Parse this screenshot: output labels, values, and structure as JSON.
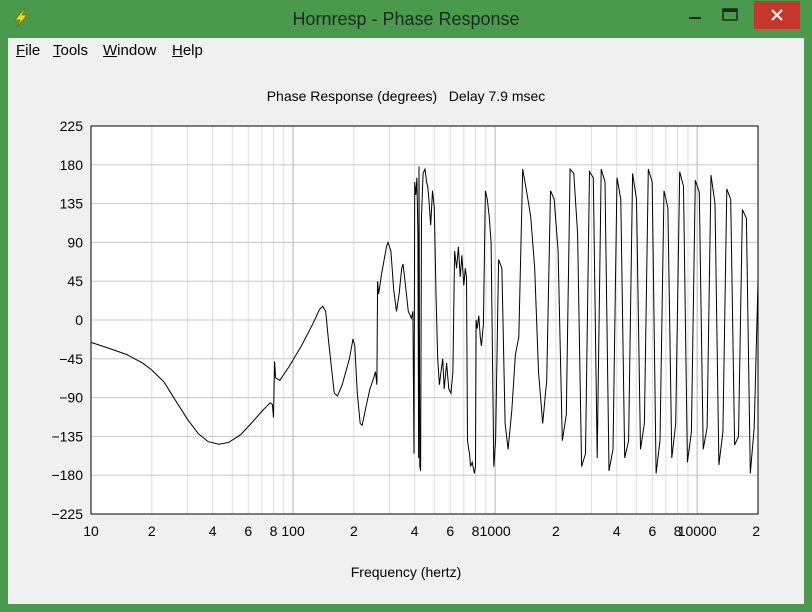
{
  "window": {
    "title": "Hornresp - Phase Response",
    "icon": "lightning-bolt-icon",
    "colors": {
      "frame": "#4a9a4e",
      "close": "#c7362b"
    }
  },
  "menu": {
    "items": [
      {
        "accel": "F",
        "rest": "ile"
      },
      {
        "accel": "T",
        "rest": "ools"
      },
      {
        "accel": "W",
        "rest": "indow"
      },
      {
        "accel": "H",
        "rest": "elp"
      }
    ]
  },
  "chart_data": {
    "type": "line",
    "title": "Phase Response (degrees)   Delay 7.9 msec",
    "xlabel": "Frequency (hertz)",
    "ylabel": "",
    "xscale": "log",
    "xlim": [
      10,
      20000
    ],
    "ylim": [
      -225,
      225
    ],
    "y_ticks": [
      "225",
      "180",
      "135",
      "90",
      "45",
      "0",
      "−45",
      "−90",
      "−135",
      "−180",
      "−225"
    ],
    "x_ticks": [
      {
        "value": 10,
        "label": "10"
      },
      {
        "value": 20,
        "label": "2"
      },
      {
        "value": 40,
        "label": "4"
      },
      {
        "value": 60,
        "label": "6"
      },
      {
        "value": 80,
        "label": "8"
      },
      {
        "value": 100,
        "label": "100"
      },
      {
        "value": 200,
        "label": "2"
      },
      {
        "value": 400,
        "label": "4"
      },
      {
        "value": 600,
        "label": "6"
      },
      {
        "value": 800,
        "label": "8"
      },
      {
        "value": 1000,
        "label": "1000"
      },
      {
        "value": 2000,
        "label": "2"
      },
      {
        "value": 4000,
        "label": "4"
      },
      {
        "value": 6000,
        "label": "6"
      },
      {
        "value": 8000,
        "label": "8"
      },
      {
        "value": 10000,
        "label": "10000"
      },
      {
        "value": 20000,
        "label": "2"
      }
    ],
    "grid": true,
    "series": [
      {
        "points": [
          [
            10,
            -26
          ],
          [
            12,
            -32
          ],
          [
            15,
            -40
          ],
          [
            18,
            -50
          ],
          [
            20,
            -58
          ],
          [
            23,
            -72
          ],
          [
            26,
            -92
          ],
          [
            30,
            -115
          ],
          [
            34,
            -132
          ],
          [
            38,
            -141
          ],
          [
            43,
            -144
          ],
          [
            48,
            -142
          ],
          [
            55,
            -133
          ],
          [
            62,
            -120
          ],
          [
            70,
            -106
          ],
          [
            77,
            -96
          ],
          [
            79,
            -98
          ],
          [
            80,
            -113
          ],
          [
            81,
            -48
          ],
          [
            82,
            -67
          ],
          [
            86,
            -70
          ],
          [
            95,
            -55
          ],
          [
            110,
            -30
          ],
          [
            125,
            -5
          ],
          [
            135,
            12
          ],
          [
            140,
            16
          ],
          [
            145,
            10
          ],
          [
            150,
            -25
          ],
          [
            160,
            -85
          ],
          [
            166,
            -88
          ],
          [
            175,
            -75
          ],
          [
            190,
            -45
          ],
          [
            198,
            -22
          ],
          [
            202,
            -30
          ],
          [
            208,
            -85
          ],
          [
            215,
            -120
          ],
          [
            220,
            -122
          ],
          [
            230,
            -100
          ],
          [
            240,
            -80
          ],
          [
            250,
            -68
          ],
          [
            256,
            -60
          ],
          [
            260,
            -75
          ],
          [
            262,
            45
          ],
          [
            265,
            30
          ],
          [
            275,
            55
          ],
          [
            290,
            85
          ],
          [
            295,
            90
          ],
          [
            305,
            80
          ],
          [
            315,
            35
          ],
          [
            325,
            10
          ],
          [
            335,
            30
          ],
          [
            345,
            60
          ],
          [
            350,
            65
          ],
          [
            360,
            40
          ],
          [
            372,
            10
          ],
          [
            385,
            2
          ],
          [
            392,
            10
          ],
          [
            397,
            -155
          ],
          [
            400,
            160
          ],
          [
            405,
            145
          ],
          [
            410,
            165
          ],
          [
            415,
            100
          ],
          [
            418,
            -160
          ],
          [
            420,
            178
          ],
          [
            424,
            -170
          ],
          [
            428,
            -175
          ],
          [
            432,
            120
          ],
          [
            440,
            170
          ],
          [
            450,
            175
          ],
          [
            458,
            160
          ],
          [
            464,
            155
          ],
          [
            470,
            140
          ],
          [
            480,
            110
          ],
          [
            490,
            150
          ],
          [
            500,
            130
          ],
          [
            510,
            30
          ],
          [
            520,
            -45
          ],
          [
            530,
            -75
          ],
          [
            540,
            -60
          ],
          [
            550,
            -45
          ],
          [
            560,
            -80
          ],
          [
            575,
            -50
          ],
          [
            590,
            -80
          ],
          [
            605,
            -85
          ],
          [
            618,
            -60
          ],
          [
            630,
            80
          ],
          [
            645,
            60
          ],
          [
            658,
            85
          ],
          [
            672,
            50
          ],
          [
            685,
            75
          ],
          [
            700,
            40
          ],
          [
            712,
            60
          ],
          [
            722,
            50
          ],
          [
            730,
            -140
          ],
          [
            740,
            -150
          ],
          [
            748,
            -155
          ],
          [
            755,
            -170
          ],
          [
            770,
            -165
          ],
          [
            790,
            -178
          ],
          [
            800,
            -170
          ],
          [
            805,
            0
          ],
          [
            815,
            -10
          ],
          [
            830,
            5
          ],
          [
            845,
            -20
          ],
          [
            855,
            -30
          ],
          [
            875,
            -5
          ],
          [
            895,
            150
          ],
          [
            915,
            140
          ],
          [
            935,
            120
          ],
          [
            955,
            90
          ],
          [
            985,
            -170
          ],
          [
            1005,
            -140
          ],
          [
            1040,
            70
          ],
          [
            1080,
            60
          ],
          [
            1120,
            -120
          ],
          [
            1160,
            -150
          ],
          [
            1210,
            -105
          ],
          [
            1260,
            -40
          ],
          [
            1310,
            -20
          ],
          [
            1370,
            175
          ],
          [
            1430,
            150
          ],
          [
            1500,
            120
          ],
          [
            1570,
            60
          ],
          [
            1640,
            -60
          ],
          [
            1720,
            -120
          ],
          [
            1800,
            -70
          ],
          [
            1880,
            150
          ],
          [
            1960,
            140
          ],
          [
            2050,
            80
          ],
          [
            2150,
            -140
          ],
          [
            2250,
            -110
          ],
          [
            2350,
            175
          ],
          [
            2450,
            170
          ],
          [
            2560,
            100
          ],
          [
            2680,
            -170
          ],
          [
            2800,
            -155
          ],
          [
            2930,
            172
          ],
          [
            3060,
            165
          ],
          [
            3200,
            -160
          ],
          [
            3350,
            175
          ],
          [
            3500,
            160
          ],
          [
            3660,
            -175
          ],
          [
            3830,
            -150
          ],
          [
            4010,
            165
          ],
          [
            4190,
            140
          ],
          [
            4380,
            -160
          ],
          [
            4580,
            -140
          ],
          [
            4790,
            170
          ],
          [
            5010,
            140
          ],
          [
            5240,
            -150
          ],
          [
            5480,
            -120
          ],
          [
            5730,
            175
          ],
          [
            5990,
            160
          ],
          [
            6260,
            -178
          ],
          [
            6550,
            -140
          ],
          [
            6850,
            150
          ],
          [
            7160,
            130
          ],
          [
            7490,
            -160
          ],
          [
            7830,
            -120
          ],
          [
            8190,
            172
          ],
          [
            8560,
            155
          ],
          [
            8950,
            -165
          ],
          [
            9360,
            -130
          ],
          [
            9790,
            162
          ],
          [
            10240,
            148
          ],
          [
            10710,
            -150
          ],
          [
            11200,
            -125
          ],
          [
            11710,
            168
          ],
          [
            12250,
            135
          ],
          [
            12810,
            -168
          ],
          [
            13400,
            -130
          ],
          [
            14010,
            152
          ],
          [
            14650,
            140
          ],
          [
            15320,
            -145
          ],
          [
            16020,
            -135
          ],
          [
            16750,
            128
          ],
          [
            17520,
            118
          ],
          [
            18320,
            -178
          ],
          [
            19160,
            -125
          ],
          [
            20000,
            45
          ],
          [
            20000,
            -35
          ]
        ]
      }
    ]
  }
}
